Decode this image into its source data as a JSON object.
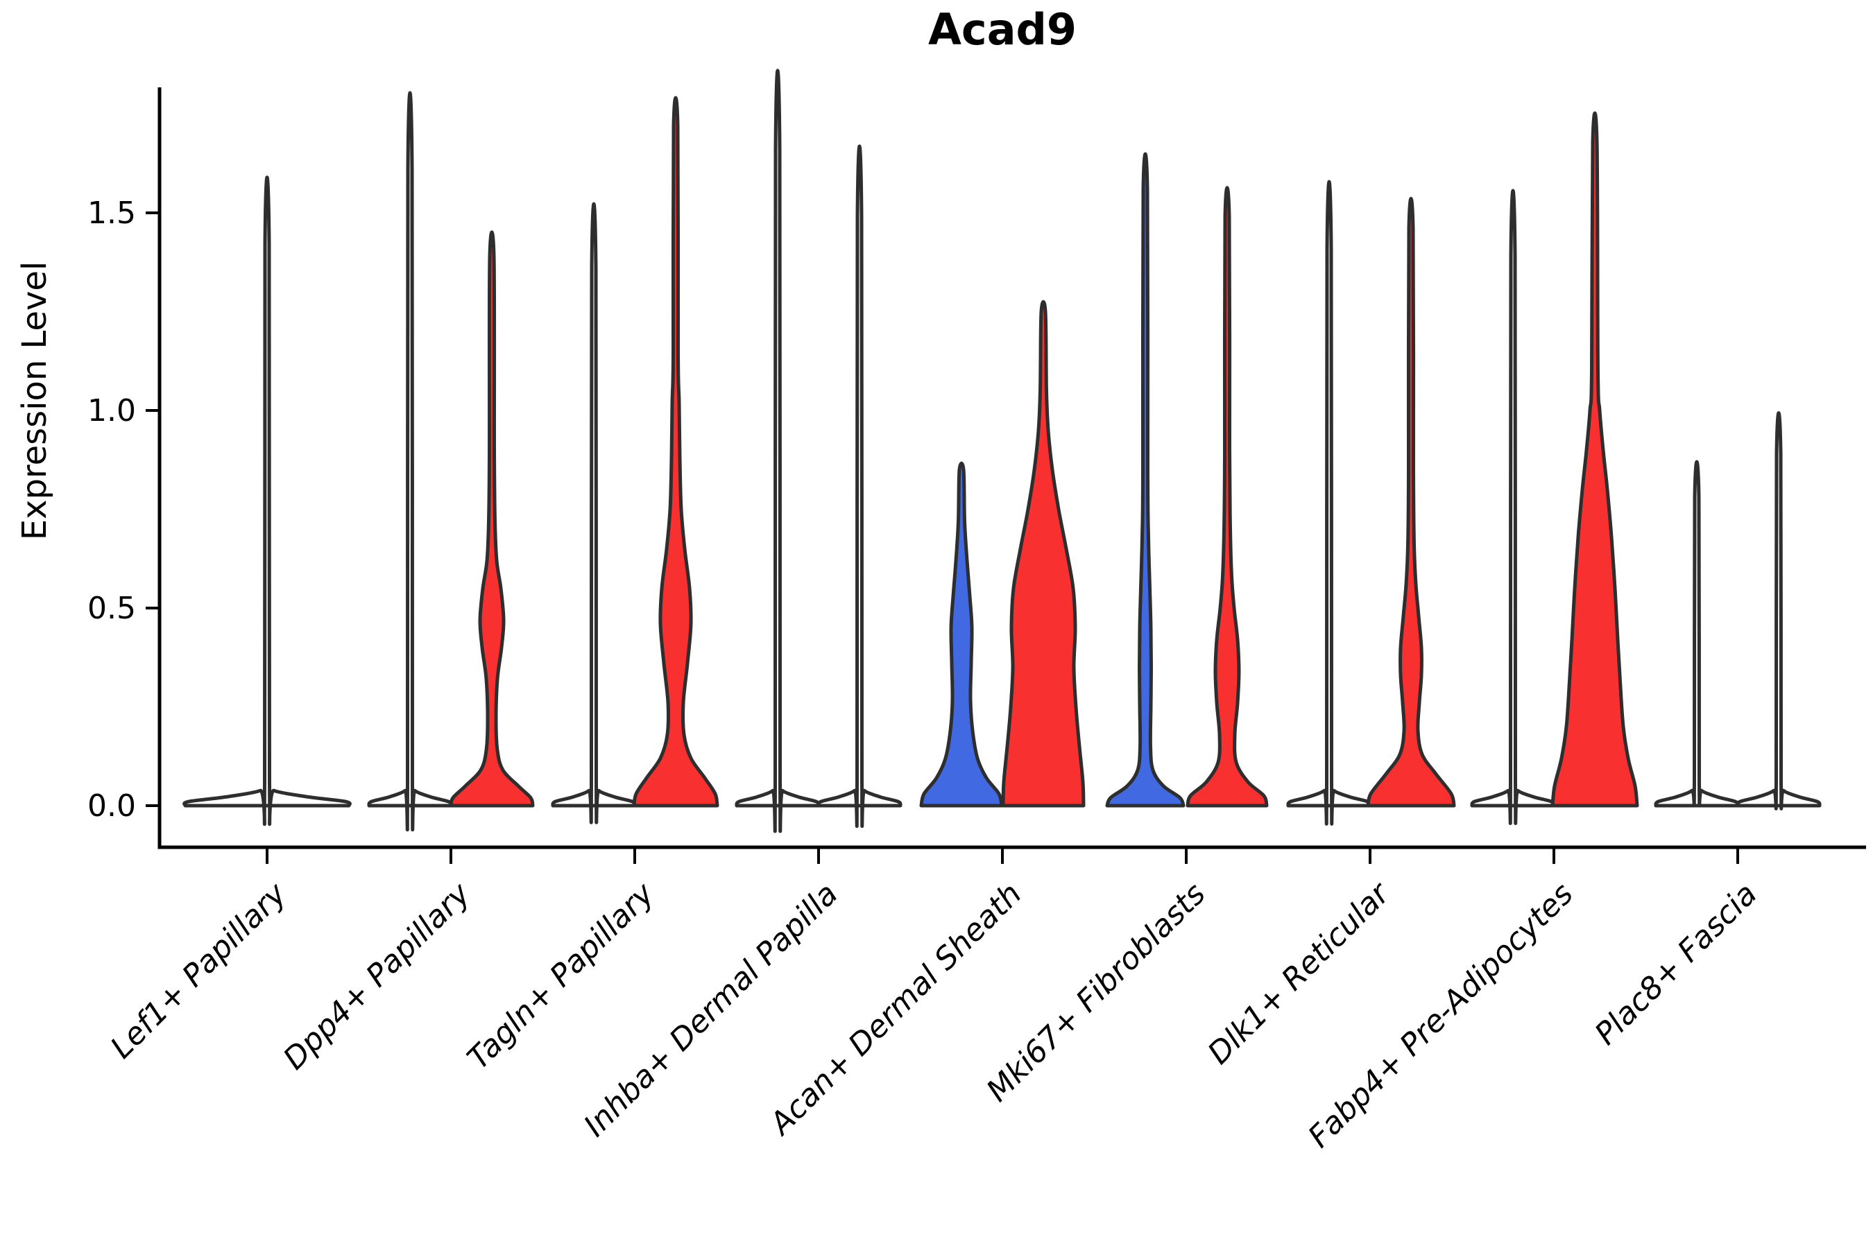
{
  "chart_data": {
    "type": "violin",
    "title": "Acad9",
    "ylabel": "Expression Level",
    "xlabel": "",
    "yticks": [
      0.0,
      0.5,
      1.0,
      1.5
    ],
    "ylim": [
      0,
      1.8
    ],
    "grid": false,
    "legend": "none",
    "x_tick_style": "italic, rotated 45deg",
    "categories": [
      "Lef1+ Papillary",
      "Dpp4+ Papillary",
      "Tagln+ Papillary",
      "Inhba+ Dermal Papilla",
      "Acan+ Dermal Sheath",
      "Mki67+ Fibroblasts",
      "Dlk1+ Reticular",
      "Fabp4+ Pre-Adipocytes",
      "Plac8+ Fascia"
    ],
    "colors": {
      "group_blue": "#4169E1",
      "group_red": "#F93030",
      "outline": "#2E2E2E",
      "axis": "#000000",
      "background": "#FFFFFF"
    },
    "violins": [
      {
        "category_index": 0,
        "category": "Lef1+ Papillary",
        "side": "full",
        "fill": "#FFFFFF",
        "max_expression": 1.42,
        "profile": [
          [
            0,
            118
          ],
          [
            0.01,
            114
          ],
          [
            0.022,
            60
          ],
          [
            0.038,
            10
          ],
          [
            0.06,
            3.5
          ],
          [
            1.42,
            3
          ]
        ]
      },
      {
        "category_index": 1,
        "category": "Dpp4+ Papillary",
        "side": "left",
        "fill": "#FFFFFF",
        "max_expression": 1.61,
        "profile": [
          [
            0,
            59
          ],
          [
            0.01,
            56
          ],
          [
            0.022,
            30
          ],
          [
            0.038,
            7
          ],
          [
            0.06,
            3.5
          ],
          [
            1.61,
            3
          ]
        ]
      },
      {
        "category_index": 1,
        "category": "Dpp4+ Papillary",
        "side": "right",
        "fill": "#F93030",
        "max_expression": 1.39,
        "profile": [
          [
            0,
            59
          ],
          [
            0.02,
            56
          ],
          [
            0.05,
            38
          ],
          [
            0.09,
            16
          ],
          [
            0.14,
            8
          ],
          [
            0.22,
            6
          ],
          [
            0.32,
            8
          ],
          [
            0.4,
            14
          ],
          [
            0.47,
            17
          ],
          [
            0.55,
            13
          ],
          [
            0.62,
            7
          ],
          [
            0.72,
            4.5
          ],
          [
            0.9,
            3.5
          ],
          [
            1.39,
            3
          ]
        ]
      },
      {
        "category_index": 2,
        "category": "Tagln+ Papillary",
        "side": "left",
        "fill": "#FFFFFF",
        "max_expression": 1.36,
        "profile": [
          [
            0,
            59
          ],
          [
            0.01,
            56
          ],
          [
            0.022,
            30
          ],
          [
            0.038,
            7
          ],
          [
            0.06,
            3.5
          ],
          [
            1.36,
            3
          ]
        ]
      },
      {
        "category_index": 2,
        "category": "Tagln+ Papillary",
        "side": "right",
        "fill": "#F93030",
        "max_expression": 1.72,
        "profile": [
          [
            0,
            60
          ],
          [
            0.03,
            57
          ],
          [
            0.07,
            42
          ],
          [
            0.12,
            22
          ],
          [
            0.18,
            12
          ],
          [
            0.26,
            11
          ],
          [
            0.36,
            17
          ],
          [
            0.46,
            22
          ],
          [
            0.55,
            20
          ],
          [
            0.65,
            13
          ],
          [
            0.75,
            8
          ],
          [
            0.88,
            6
          ],
          [
            1.02,
            5
          ],
          [
            1.15,
            3.5
          ],
          [
            1.72,
            3
          ]
        ]
      },
      {
        "category_index": 3,
        "category": "Inhba+ Dermal Papilla",
        "side": "left",
        "fill": "#FFFFFF",
        "max_expression": 1.66,
        "profile": [
          [
            0,
            59
          ],
          [
            0.01,
            56
          ],
          [
            0.022,
            30
          ],
          [
            0.038,
            7
          ],
          [
            0.06,
            3.5
          ],
          [
            1.66,
            3
          ]
        ]
      },
      {
        "category_index": 3,
        "category": "Inhba+ Dermal Papilla",
        "side": "right",
        "fill": "#FFFFFF",
        "max_expression": 1.49,
        "profile": [
          [
            0,
            59
          ],
          [
            0.01,
            56
          ],
          [
            0.022,
            30
          ],
          [
            0.038,
            7
          ],
          [
            0.06,
            3.5
          ],
          [
            1.49,
            3
          ]
        ]
      },
      {
        "category_index": 4,
        "category": "Acan+ Dermal Sheath",
        "side": "left",
        "fill": "#4169E1",
        "max_expression": 0.85,
        "profile": [
          [
            0,
            58
          ],
          [
            0.03,
            54
          ],
          [
            0.07,
            36
          ],
          [
            0.12,
            23
          ],
          [
            0.19,
            16
          ],
          [
            0.27,
            13
          ],
          [
            0.36,
            14
          ],
          [
            0.45,
            15
          ],
          [
            0.53,
            12
          ],
          [
            0.62,
            8
          ],
          [
            0.72,
            4.5
          ],
          [
            0.85,
            3
          ]
        ]
      },
      {
        "category_index": 4,
        "category": "Acan+ Dermal Sheath",
        "side": "right",
        "fill": "#F93030",
        "max_expression": 1.25,
        "profile": [
          [
            0,
            58
          ],
          [
            0.06,
            57
          ],
          [
            0.15,
            52
          ],
          [
            0.25,
            47
          ],
          [
            0.35,
            44
          ],
          [
            0.45,
            46
          ],
          [
            0.55,
            43
          ],
          [
            0.65,
            33
          ],
          [
            0.75,
            22
          ],
          [
            0.85,
            13
          ],
          [
            0.95,
            7
          ],
          [
            1.05,
            4.5
          ],
          [
            1.25,
            3
          ]
        ]
      },
      {
        "category_index": 5,
        "category": "Mki67+ Fibroblasts",
        "side": "left",
        "fill": "#4169E1",
        "max_expression": 1.56,
        "profile": [
          [
            0,
            55
          ],
          [
            0.02,
            50
          ],
          [
            0.05,
            26
          ],
          [
            0.09,
            11
          ],
          [
            0.15,
            7.5
          ],
          [
            0.25,
            8
          ],
          [
            0.35,
            8.5
          ],
          [
            0.45,
            8
          ],
          [
            0.55,
            6.5
          ],
          [
            0.68,
            4.5
          ],
          [
            0.85,
            3.5
          ],
          [
            1.56,
            3
          ]
        ]
      },
      {
        "category_index": 5,
        "category": "Mki67+ Fibroblasts",
        "side": "right",
        "fill": "#F93030",
        "max_expression": 1.49,
        "profile": [
          [
            0,
            57
          ],
          [
            0.025,
            53
          ],
          [
            0.06,
            30
          ],
          [
            0.11,
            13
          ],
          [
            0.18,
            11
          ],
          [
            0.26,
            15
          ],
          [
            0.34,
            17
          ],
          [
            0.42,
            15
          ],
          [
            0.5,
            10
          ],
          [
            0.58,
            6.5
          ],
          [
            0.7,
            4.5
          ],
          [
            0.9,
            3.5
          ],
          [
            1.49,
            3
          ]
        ]
      },
      {
        "category_index": 6,
        "category": "Dlk1+ Reticular",
        "side": "left",
        "fill": "#FFFFFF",
        "max_expression": 1.41,
        "profile": [
          [
            0,
            59
          ],
          [
            0.01,
            56
          ],
          [
            0.022,
            30
          ],
          [
            0.038,
            7
          ],
          [
            0.06,
            3.5
          ],
          [
            1.41,
            3
          ]
        ]
      },
      {
        "category_index": 6,
        "category": "Dlk1+ Reticular",
        "side": "right",
        "fill": "#F93030",
        "max_expression": 1.46,
        "profile": [
          [
            0,
            62
          ],
          [
            0.03,
            58
          ],
          [
            0.08,
            36
          ],
          [
            0.13,
            16
          ],
          [
            0.19,
            10
          ],
          [
            0.26,
            12
          ],
          [
            0.33,
            15
          ],
          [
            0.4,
            15
          ],
          [
            0.48,
            11
          ],
          [
            0.56,
            7
          ],
          [
            0.66,
            4.5
          ],
          [
            0.85,
            3.5
          ],
          [
            1.46,
            3
          ]
        ]
      },
      {
        "category_index": 7,
        "category": "Fabp4+ Pre-Adipocytes",
        "side": "left",
        "fill": "#FFFFFF",
        "max_expression": 1.39,
        "profile": [
          [
            0,
            59
          ],
          [
            0.01,
            56
          ],
          [
            0.022,
            30
          ],
          [
            0.038,
            7
          ],
          [
            0.06,
            3.5
          ],
          [
            1.39,
            3
          ]
        ]
      },
      {
        "category_index": 7,
        "category": "Fabp4+ Pre-Adipocytes",
        "side": "right",
        "fill": "#F93030",
        "max_expression": 1.68,
        "profile": [
          [
            0,
            61
          ],
          [
            0.05,
            58
          ],
          [
            0.12,
            48
          ],
          [
            0.2,
            41
          ],
          [
            0.3,
            37
          ],
          [
            0.42,
            33
          ],
          [
            0.55,
            29
          ],
          [
            0.68,
            24
          ],
          [
            0.8,
            18
          ],
          [
            0.9,
            12
          ],
          [
            1.0,
            7
          ],
          [
            1.1,
            4.5
          ],
          [
            1.68,
            3
          ]
        ]
      },
      {
        "category_index": 8,
        "category": "Plac8+ Fascia",
        "side": "left",
        "fill": "#FFFFFF",
        "max_expression": 0.78,
        "profile": [
          [
            0,
            59
          ],
          [
            0.01,
            56
          ],
          [
            0.022,
            30
          ],
          [
            0.038,
            7
          ],
          [
            0.06,
            3.5
          ],
          [
            0.78,
            3
          ]
        ]
      },
      {
        "category_index": 8,
        "category": "Plac8+ Fascia",
        "side": "right",
        "fill": "#FFFFFF",
        "max_expression": 0.89,
        "profile": [
          [
            0,
            59
          ],
          [
            0.01,
            56
          ],
          [
            0.022,
            30
          ],
          [
            0.038,
            7
          ],
          [
            0.06,
            3.5
          ],
          [
            0.89,
            3
          ]
        ]
      }
    ]
  }
}
